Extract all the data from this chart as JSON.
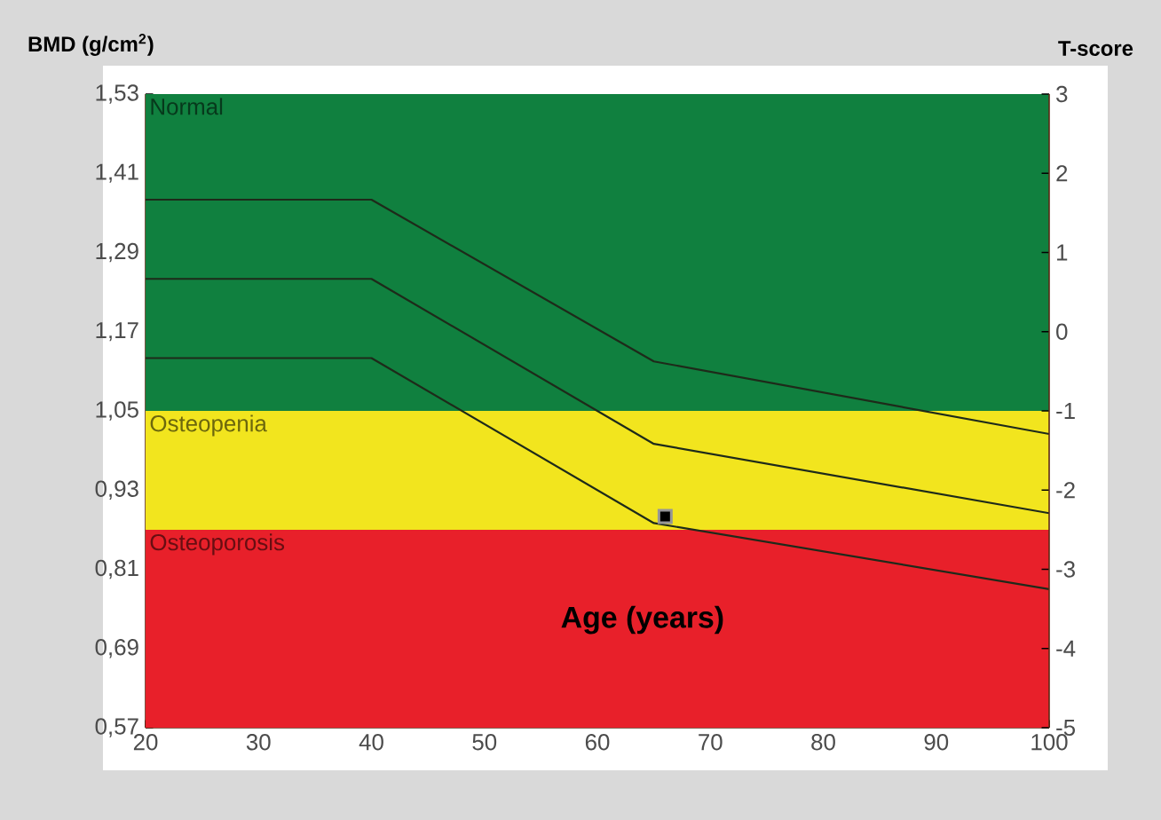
{
  "chart_data": {
    "type": "line",
    "ylabel": "BMD (g/cm$^{2}$)",
    "y2label": "T-score",
    "xlabel": "Age (years)",
    "xlim": [
      20,
      100
    ],
    "xticks": [
      20,
      30,
      40,
      50,
      60,
      70,
      80,
      90,
      100
    ],
    "ylim": [
      0.57,
      1.53
    ],
    "yticks": [
      {
        "value": 0.57,
        "label": "0,57"
      },
      {
        "value": 0.69,
        "label": "0,69"
      },
      {
        "value": 0.81,
        "label": "0,81"
      },
      {
        "value": 0.93,
        "label": "0,93"
      },
      {
        "value": 1.05,
        "label": "1,05"
      },
      {
        "value": 1.17,
        "label": "1,17"
      },
      {
        "value": 1.29,
        "label": "1,29"
      },
      {
        "value": 1.41,
        "label": "1,41"
      },
      {
        "value": 1.53,
        "label": "1,53"
      }
    ],
    "y2lim": [
      -5,
      3
    ],
    "y2ticks": [
      -5,
      -4,
      -3,
      -2,
      -1,
      0,
      1,
      2,
      3
    ],
    "bands": [
      {
        "axis": "y",
        "from": 1.05,
        "to": 1.53,
        "label": "Normal",
        "color": "#10803f"
      },
      {
        "axis": "y",
        "from": 0.87,
        "to": 1.05,
        "label": "Osteopenia",
        "color": "#f2e51e"
      },
      {
        "axis": "y",
        "from": 0.57,
        "to": 0.87,
        "label": "Osteoporosis",
        "color": "#e8202a"
      }
    ],
    "series": [
      {
        "color": "#1e2a1a",
        "x": [
          20,
          40,
          65,
          100
        ],
        "values": [
          1.37,
          1.37,
          1.125,
          1.015
        ]
      },
      {
        "color": "#1e2a1a",
        "x": [
          20,
          40,
          65,
          100
        ],
        "values": [
          1.25,
          1.25,
          1.0,
          0.895
        ]
      },
      {
        "color": "#1e2a1a",
        "x": [
          20,
          40,
          65,
          100
        ],
        "values": [
          1.13,
          1.13,
          0.88,
          0.78
        ]
      },
      {
        "type": "scatter",
        "color": "#000000",
        "marker": "square",
        "x": [
          66
        ],
        "values": [
          0.89
        ]
      }
    ],
    "grid": false
  }
}
